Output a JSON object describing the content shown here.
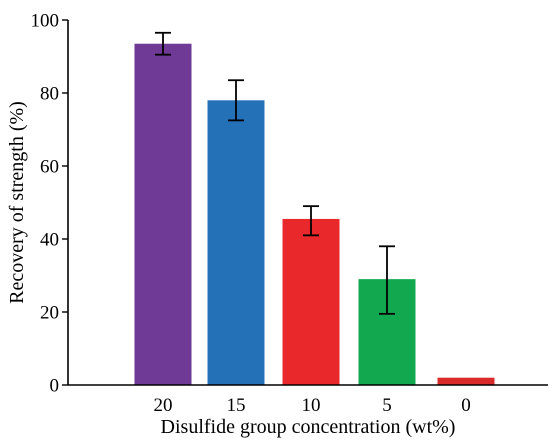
{
  "chart_data": {
    "type": "bar",
    "title": "",
    "xlabel": "Disulfide group concentration (wt%)",
    "ylabel": "Recovery of strength (%)",
    "categories": [
      "20",
      "15",
      "10",
      "5",
      "0"
    ],
    "values": [
      93.5,
      78,
      45.5,
      29,
      2
    ],
    "errors_upper": [
      3.0,
      5.5,
      3.5,
      9.0,
      0
    ],
    "errors_lower": [
      3.0,
      5.5,
      4.5,
      9.5,
      0
    ],
    "colors": [
      "#6f3a96",
      "#2471b8",
      "#e8282b",
      "#12a84f",
      "#d92b2b"
    ],
    "ylim": [
      0,
      100
    ],
    "yticks": [
      0,
      20,
      40,
      60,
      80,
      100
    ],
    "grid": false
  }
}
